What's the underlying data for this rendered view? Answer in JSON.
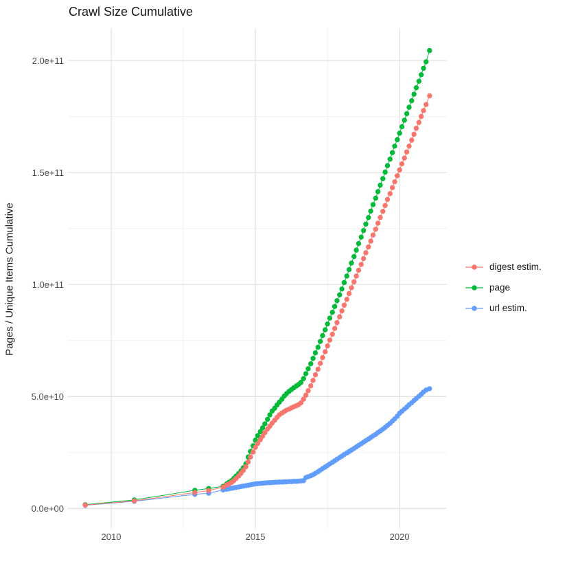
{
  "page_title": "Crawl Size Cumulative",
  "chart_data": {
    "type": "line",
    "title": "Crawl Size Cumulative",
    "xlabel": "",
    "ylabel": "Pages / Unique Items Cumulative",
    "legend_position": "right",
    "grid": "major and minor, light gray on white",
    "x_domain": [
      2008.5,
      2021.64
    ],
    "y_domain_billions": [
      -8.8,
      214.5
    ],
    "x_ticks": [
      {
        "v": 2010,
        "label": "2010"
      },
      {
        "v": 2015,
        "label": "2015"
      },
      {
        "v": 2020,
        "label": "2020"
      }
    ],
    "x_minor": [
      2012.5,
      2017.5
    ],
    "y_ticks": [
      {
        "v": 0,
        "label": "0.0e+00"
      },
      {
        "v": 50,
        "label": "5.0e+10"
      },
      {
        "v": 100,
        "label": "1.0e+11"
      },
      {
        "v": 150,
        "label": "1.5e+11"
      },
      {
        "v": 200,
        "label": "2.0e+11"
      }
    ],
    "y_minor": [
      25,
      75,
      125,
      175
    ],
    "value_unit": "billions (1e9) of pages / unique items",
    "series": [
      {
        "name": "digest estim.",
        "color": "#F8766D",
        "points": [
          [
            2009.1,
            1.5
          ],
          [
            2010.8,
            3.4
          ],
          [
            2012.9,
            7.1
          ],
          [
            2013.38,
            8.0
          ],
          [
            2013.88,
            9.5
          ],
          [
            2014.0,
            10.5
          ],
          [
            2014.08,
            11.0
          ],
          [
            2014.17,
            11.6
          ],
          [
            2014.25,
            12.4
          ],
          [
            2014.33,
            13.4
          ],
          [
            2014.42,
            14.5
          ],
          [
            2014.5,
            15.7
          ],
          [
            2014.58,
            17.0
          ],
          [
            2014.67,
            18.6
          ],
          [
            2014.75,
            20.8
          ],
          [
            2014.83,
            23.0
          ],
          [
            2014.92,
            25.2
          ],
          [
            2015.0,
            27.3
          ],
          [
            2015.08,
            29.0
          ],
          [
            2015.17,
            30.7
          ],
          [
            2015.25,
            32.3
          ],
          [
            2015.33,
            33.9
          ],
          [
            2015.42,
            35.5
          ],
          [
            2015.5,
            36.8
          ],
          [
            2015.58,
            38.1
          ],
          [
            2015.67,
            39.4
          ],
          [
            2015.75,
            40.7
          ],
          [
            2015.83,
            41.8
          ],
          [
            2015.92,
            42.6
          ],
          [
            2016.0,
            43.3
          ],
          [
            2016.08,
            43.9
          ],
          [
            2016.17,
            44.4
          ],
          [
            2016.25,
            44.9
          ],
          [
            2016.33,
            45.4
          ],
          [
            2016.42,
            45.9
          ],
          [
            2016.5,
            46.4
          ],
          [
            2016.58,
            47.2
          ],
          [
            2016.67,
            48.8
          ],
          [
            2016.75,
            50.6
          ],
          [
            2016.83,
            52.6
          ],
          [
            2016.92,
            54.8
          ],
          [
            2017.0,
            57.2
          ],
          [
            2017.08,
            59.7
          ],
          [
            2017.17,
            62.2
          ],
          [
            2017.25,
            64.8
          ],
          [
            2017.33,
            67.4
          ],
          [
            2017.42,
            70.0
          ],
          [
            2017.5,
            72.6
          ],
          [
            2017.58,
            75.2
          ],
          [
            2017.67,
            77.8
          ],
          [
            2017.75,
            80.4
          ],
          [
            2017.83,
            83.0
          ],
          [
            2017.92,
            85.6
          ],
          [
            2018.0,
            88.2
          ],
          [
            2018.08,
            90.8
          ],
          [
            2018.17,
            93.4
          ],
          [
            2018.25,
            96.0
          ],
          [
            2018.33,
            98.6
          ],
          [
            2018.42,
            101.2
          ],
          [
            2018.5,
            103.8
          ],
          [
            2018.58,
            106.4
          ],
          [
            2018.67,
            109.0
          ],
          [
            2018.75,
            111.6
          ],
          [
            2018.83,
            114.2
          ],
          [
            2018.92,
            116.8
          ],
          [
            2019.0,
            119.4
          ],
          [
            2019.08,
            122.1
          ],
          [
            2019.17,
            124.7
          ],
          [
            2019.25,
            127.4
          ],
          [
            2019.33,
            130.0
          ],
          [
            2019.42,
            132.7
          ],
          [
            2019.5,
            135.3
          ],
          [
            2019.58,
            138.0
          ],
          [
            2019.67,
            140.6
          ],
          [
            2019.75,
            143.3
          ],
          [
            2019.83,
            145.9
          ],
          [
            2019.92,
            148.6
          ],
          [
            2020.0,
            151.2
          ],
          [
            2020.08,
            153.9
          ],
          [
            2020.17,
            156.5
          ],
          [
            2020.25,
            159.2
          ],
          [
            2020.33,
            161.8
          ],
          [
            2020.42,
            164.5
          ],
          [
            2020.5,
            167.1
          ],
          [
            2020.58,
            169.8
          ],
          [
            2020.67,
            172.4
          ],
          [
            2020.75,
            175.1
          ],
          [
            2020.83,
            177.7
          ],
          [
            2020.92,
            180.4
          ],
          [
            2021.04,
            184.3
          ]
        ]
      },
      {
        "name": "page",
        "color": "#00BA38",
        "points": [
          [
            2009.1,
            1.7
          ],
          [
            2010.8,
            3.8
          ],
          [
            2012.9,
            8.1
          ],
          [
            2013.38,
            8.9
          ],
          [
            2013.88,
            9.9
          ],
          [
            2014.0,
            11.0
          ],
          [
            2014.08,
            11.7
          ],
          [
            2014.17,
            12.4
          ],
          [
            2014.25,
            13.4
          ],
          [
            2014.33,
            14.5
          ],
          [
            2014.42,
            15.6
          ],
          [
            2014.5,
            16.8
          ],
          [
            2014.58,
            18.2
          ],
          [
            2014.67,
            20.0
          ],
          [
            2014.75,
            23.0
          ],
          [
            2014.83,
            25.5
          ],
          [
            2014.92,
            28.0
          ],
          [
            2015.0,
            30.5
          ],
          [
            2015.08,
            32.5
          ],
          [
            2015.17,
            34.3
          ],
          [
            2015.25,
            36.0
          ],
          [
            2015.33,
            37.8
          ],
          [
            2015.42,
            39.8
          ],
          [
            2015.5,
            41.8
          ],
          [
            2015.58,
            43.5
          ],
          [
            2015.67,
            44.8
          ],
          [
            2015.75,
            46.2
          ],
          [
            2015.83,
            47.5
          ],
          [
            2015.92,
            48.8
          ],
          [
            2016.0,
            50.2
          ],
          [
            2016.08,
            51.3
          ],
          [
            2016.17,
            52.3
          ],
          [
            2016.25,
            53.1
          ],
          [
            2016.33,
            53.9
          ],
          [
            2016.42,
            54.7
          ],
          [
            2016.5,
            55.4
          ],
          [
            2016.58,
            56.3
          ],
          [
            2016.67,
            58.0
          ],
          [
            2016.75,
            60.2
          ],
          [
            2016.83,
            62.4
          ],
          [
            2016.92,
            64.6
          ],
          [
            2017.0,
            67.0
          ],
          [
            2017.08,
            69.5
          ],
          [
            2017.17,
            72.0
          ],
          [
            2017.25,
            74.6
          ],
          [
            2017.33,
            77.2
          ],
          [
            2017.42,
            79.8
          ],
          [
            2017.5,
            82.4
          ],
          [
            2017.58,
            85.0
          ],
          [
            2017.67,
            87.6
          ],
          [
            2017.75,
            90.2
          ],
          [
            2017.83,
            92.8
          ],
          [
            2017.92,
            95.4
          ],
          [
            2018.0,
            98.0
          ],
          [
            2018.08,
            100.9
          ],
          [
            2018.17,
            103.8
          ],
          [
            2018.25,
            106.7
          ],
          [
            2018.33,
            109.6
          ],
          [
            2018.42,
            112.5
          ],
          [
            2018.5,
            115.4
          ],
          [
            2018.58,
            118.3
          ],
          [
            2018.67,
            121.2
          ],
          [
            2018.75,
            124.1
          ],
          [
            2018.83,
            127.0
          ],
          [
            2018.92,
            129.9
          ],
          [
            2019.0,
            132.8
          ],
          [
            2019.08,
            135.7
          ],
          [
            2019.17,
            138.6
          ],
          [
            2019.25,
            141.5
          ],
          [
            2019.33,
            144.4
          ],
          [
            2019.42,
            147.3
          ],
          [
            2019.5,
            150.2
          ],
          [
            2019.58,
            153.1
          ],
          [
            2019.67,
            156.0
          ],
          [
            2019.75,
            158.9
          ],
          [
            2019.83,
            161.8
          ],
          [
            2019.92,
            164.7
          ],
          [
            2020.0,
            167.6
          ],
          [
            2020.08,
            170.5
          ],
          [
            2020.17,
            173.4
          ],
          [
            2020.25,
            176.3
          ],
          [
            2020.33,
            179.2
          ],
          [
            2020.42,
            182.1
          ],
          [
            2020.5,
            185.0
          ],
          [
            2020.58,
            187.9
          ],
          [
            2020.67,
            190.8
          ],
          [
            2020.75,
            193.7
          ],
          [
            2020.83,
            196.6
          ],
          [
            2020.92,
            199.5
          ],
          [
            2021.04,
            204.5
          ]
        ]
      },
      {
        "name": "url estim.",
        "color": "#619CFF",
        "points": [
          [
            2009.1,
            1.4
          ],
          [
            2010.8,
            3.2
          ],
          [
            2012.9,
            6.3
          ],
          [
            2013.38,
            6.8
          ],
          [
            2013.88,
            8.3
          ],
          [
            2014.0,
            8.6
          ],
          [
            2014.08,
            8.8
          ],
          [
            2014.17,
            9.0
          ],
          [
            2014.25,
            9.2
          ],
          [
            2014.33,
            9.4
          ],
          [
            2014.42,
            9.6
          ],
          [
            2014.5,
            9.8
          ],
          [
            2014.58,
            10.0
          ],
          [
            2014.67,
            10.2
          ],
          [
            2014.75,
            10.4
          ],
          [
            2014.83,
            10.6
          ],
          [
            2014.92,
            10.8
          ],
          [
            2015.0,
            11.0
          ],
          [
            2015.08,
            11.1
          ],
          [
            2015.17,
            11.2
          ],
          [
            2015.25,
            11.3
          ],
          [
            2015.33,
            11.4
          ],
          [
            2015.42,
            11.5
          ],
          [
            2015.5,
            11.5
          ],
          [
            2015.58,
            11.6
          ],
          [
            2015.67,
            11.7
          ],
          [
            2015.75,
            11.7
          ],
          [
            2015.83,
            11.8
          ],
          [
            2015.92,
            11.8
          ],
          [
            2016.0,
            11.9
          ],
          [
            2016.08,
            11.9
          ],
          [
            2016.17,
            12.0
          ],
          [
            2016.25,
            12.0
          ],
          [
            2016.33,
            12.1
          ],
          [
            2016.42,
            12.1
          ],
          [
            2016.5,
            12.2
          ],
          [
            2016.58,
            12.3
          ],
          [
            2016.67,
            12.4
          ],
          [
            2016.75,
            13.8
          ],
          [
            2016.83,
            14.2
          ],
          [
            2016.92,
            14.6
          ],
          [
            2017.0,
            15.1
          ],
          [
            2017.08,
            15.7
          ],
          [
            2017.17,
            16.4
          ],
          [
            2017.25,
            17.1
          ],
          [
            2017.33,
            17.8
          ],
          [
            2017.42,
            18.5
          ],
          [
            2017.5,
            19.2
          ],
          [
            2017.58,
            19.9
          ],
          [
            2017.67,
            20.6
          ],
          [
            2017.75,
            21.3
          ],
          [
            2017.83,
            22.0
          ],
          [
            2017.92,
            22.7
          ],
          [
            2018.0,
            23.4
          ],
          [
            2018.08,
            24.1
          ],
          [
            2018.17,
            24.8
          ],
          [
            2018.25,
            25.4
          ],
          [
            2018.33,
            26.1
          ],
          [
            2018.42,
            26.8
          ],
          [
            2018.5,
            27.5
          ],
          [
            2018.58,
            28.2
          ],
          [
            2018.67,
            28.9
          ],
          [
            2018.75,
            29.6
          ],
          [
            2018.83,
            30.3
          ],
          [
            2018.92,
            31.0
          ],
          [
            2019.0,
            31.7
          ],
          [
            2019.08,
            32.4
          ],
          [
            2019.17,
            33.1
          ],
          [
            2019.25,
            33.9
          ],
          [
            2019.33,
            34.6
          ],
          [
            2019.42,
            35.4
          ],
          [
            2019.5,
            36.2
          ],
          [
            2019.58,
            37.1
          ],
          [
            2019.67,
            38.0
          ],
          [
            2019.75,
            39.0
          ],
          [
            2019.83,
            40.0
          ],
          [
            2019.92,
            41.2
          ],
          [
            2020.0,
            42.5
          ],
          [
            2020.08,
            43.4
          ],
          [
            2020.17,
            44.4
          ],
          [
            2020.25,
            45.3
          ],
          [
            2020.33,
            46.3
          ],
          [
            2020.42,
            47.2
          ],
          [
            2020.5,
            48.2
          ],
          [
            2020.58,
            49.1
          ],
          [
            2020.67,
            50.1
          ],
          [
            2020.75,
            51.0
          ],
          [
            2020.83,
            52.0
          ],
          [
            2020.92,
            52.9
          ],
          [
            2021.04,
            53.5
          ]
        ]
      }
    ],
    "style": {
      "background": "#ffffff",
      "grid_major_color": "#e3e3e3",
      "grid_minor_color": "#f1f1f1",
      "title_color": "#1a1a1a",
      "tick_label_color": "#4d4d4d",
      "point_radius": 3.7
    }
  }
}
